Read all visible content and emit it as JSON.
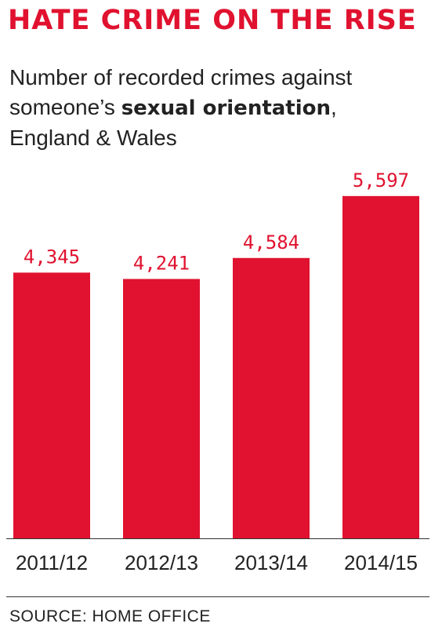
{
  "headline": "HATE CRIME ON THE RISE",
  "subtitle": {
    "line1": "Number of recorded crimes against",
    "line2_prefix": "someone’s ",
    "line2_bold": "sexual orientation",
    "line2_suffix": ",",
    "line3": "England & Wales"
  },
  "source": "SOURCE: HOME OFFICE",
  "colors": {
    "headline": "#e0122f",
    "bar": "#e0122f",
    "value_label": "#e0122f",
    "text": "#222222"
  },
  "chart_data": {
    "type": "bar",
    "categories": [
      "2011/12",
      "2012/13",
      "2013/14",
      "2014/15"
    ],
    "values": [
      4345,
      4241,
      4584,
      5597
    ],
    "value_labels": [
      "4,345",
      "4,241",
      "4,584",
      "5,597"
    ],
    "title": "Number of recorded crimes against someone’s sexual orientation, England & Wales",
    "xlabel": "",
    "ylabel": "",
    "ylim": [
      0,
      5800
    ],
    "grid": false,
    "legend": "none"
  }
}
